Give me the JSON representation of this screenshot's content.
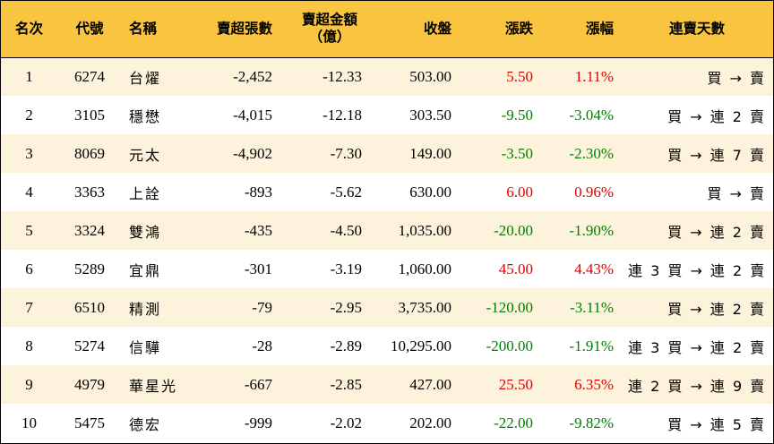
{
  "headers": {
    "rank": "名次",
    "code": "代號",
    "name": "名稱",
    "net_sell_lots": "賣超張數",
    "net_sell_amount_line1": "賣超金額",
    "net_sell_amount_line2": "（億）",
    "close": "收盤",
    "change": "漲跌",
    "pct": "漲幅",
    "streak": "連賣天數"
  },
  "rows": [
    {
      "rank": "1",
      "code": "6274",
      "name": "台燿",
      "lots": "-2,452",
      "amount": "-12.33",
      "close": "503.00",
      "change": "5.50",
      "pct": "1.11%",
      "dir": "up",
      "streak": "買 → 賣"
    },
    {
      "rank": "2",
      "code": "3105",
      "name": "穩懋",
      "lots": "-4,015",
      "amount": "-12.18",
      "close": "303.50",
      "change": "-9.50",
      "pct": "-3.04%",
      "dir": "down",
      "streak": "買 → 連 2 賣"
    },
    {
      "rank": "3",
      "code": "8069",
      "name": "元太",
      "lots": "-4,902",
      "amount": "-7.30",
      "close": "149.00",
      "change": "-3.50",
      "pct": "-2.30%",
      "dir": "down",
      "streak": "買 → 連 7 賣"
    },
    {
      "rank": "4",
      "code": "3363",
      "name": "上詮",
      "lots": "-893",
      "amount": "-5.62",
      "close": "630.00",
      "change": "6.00",
      "pct": "0.96%",
      "dir": "up",
      "streak": "買 → 賣"
    },
    {
      "rank": "5",
      "code": "3324",
      "name": "雙鴻",
      "lots": "-435",
      "amount": "-4.50",
      "close": "1,035.00",
      "change": "-20.00",
      "pct": "-1.90%",
      "dir": "down",
      "streak": "買 → 連 2 賣"
    },
    {
      "rank": "6",
      "code": "5289",
      "name": "宜鼎",
      "lots": "-301",
      "amount": "-3.19",
      "close": "1,060.00",
      "change": "45.00",
      "pct": "4.43%",
      "dir": "up",
      "streak": "連 3 買 → 連 2 賣"
    },
    {
      "rank": "7",
      "code": "6510",
      "name": "精測",
      "lots": "-79",
      "amount": "-2.95",
      "close": "3,735.00",
      "change": "-120.00",
      "pct": "-3.11%",
      "dir": "down",
      "streak": "買 → 連 2 賣"
    },
    {
      "rank": "8",
      "code": "5274",
      "name": "信驊",
      "lots": "-28",
      "amount": "-2.89",
      "close": "10,295.00",
      "change": "-200.00",
      "pct": "-1.91%",
      "dir": "down",
      "streak": "連 3 買 → 連 2 賣"
    },
    {
      "rank": "9",
      "code": "4979",
      "name": "華星光",
      "lots": "-667",
      "amount": "-2.85",
      "close": "427.00",
      "change": "25.50",
      "pct": "6.35%",
      "dir": "up",
      "streak": "連 2 買 → 連 9 賣"
    },
    {
      "rank": "10",
      "code": "5475",
      "name": "德宏",
      "lots": "-999",
      "amount": "-2.02",
      "close": "202.00",
      "change": "-22.00",
      "pct": "-9.82%",
      "dir": "down",
      "streak": "買 → 連 5 賣"
    }
  ],
  "colors": {
    "header_bg": "#f9c440",
    "stripe_bg": "#fdf3dc",
    "up": "#e00000",
    "down": "#008000"
  }
}
